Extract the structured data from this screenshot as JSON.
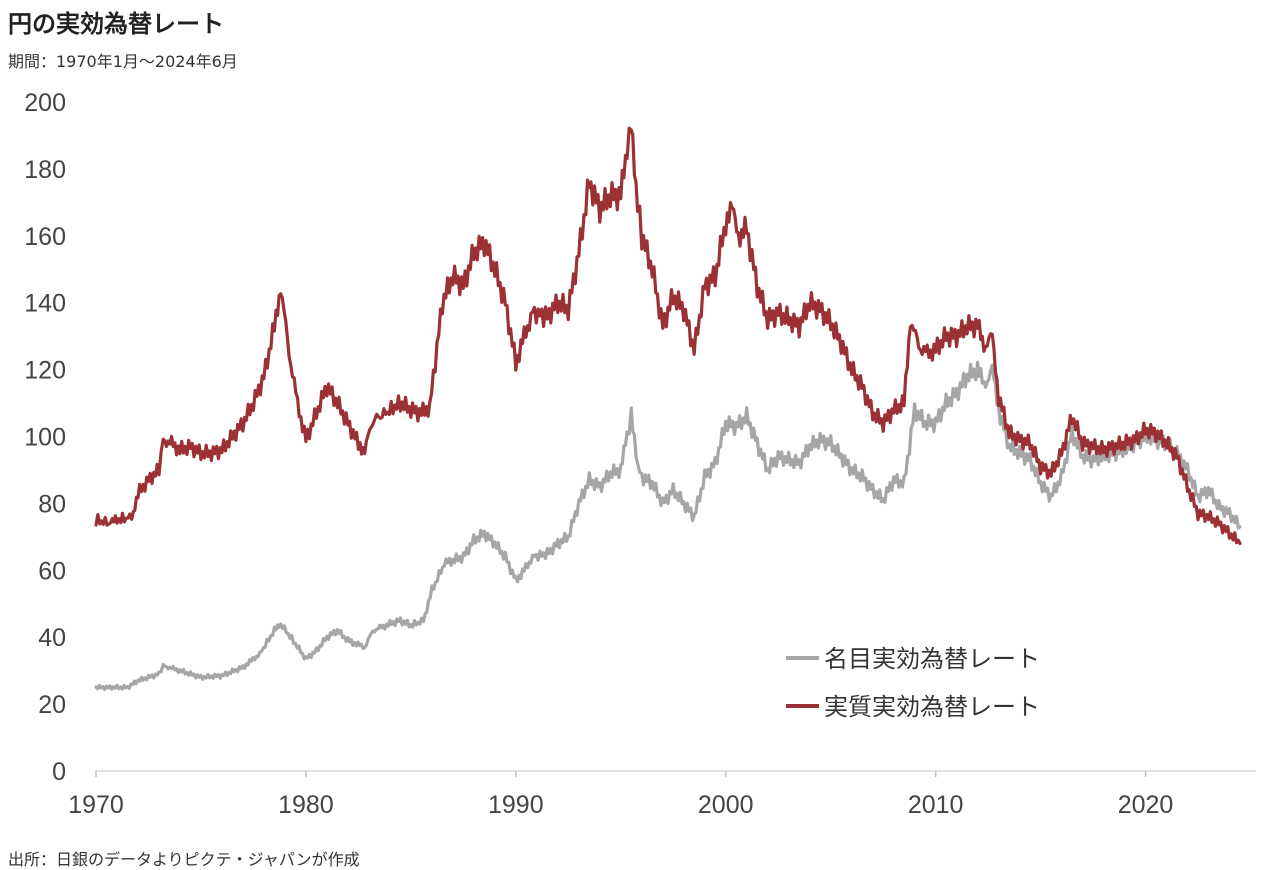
{
  "header": {
    "title": "円の実効為替レート",
    "subtitle": "期間：1970年1月～2024年6月"
  },
  "footer": {
    "source": "出所：日銀のデータよりピクテ・ジャパンが作成"
  },
  "chart_data": {
    "type": "line",
    "ylim": [
      0,
      200
    ],
    "xlim": [
      1970,
      2024.5
    ],
    "y_ticks": [
      0,
      20,
      40,
      60,
      80,
      100,
      120,
      140,
      160,
      180,
      200
    ],
    "x_ticks": [
      1970,
      1980,
      1990,
      2000,
      2010,
      2020
    ],
    "grid": false,
    "legend_position": "bottom-right",
    "series": [
      {
        "name": "名目実効為替レート",
        "color": "#a6a6a6",
        "points": [
          [
            1970.0,
            25
          ],
          [
            1971.5,
            25
          ],
          [
            1972.0,
            27
          ],
          [
            1973.0,
            29
          ],
          [
            1973.2,
            31.5
          ],
          [
            1974.0,
            30
          ],
          [
            1975.0,
            28
          ],
          [
            1976.0,
            28.5
          ],
          [
            1977.0,
            31
          ],
          [
            1977.8,
            35
          ],
          [
            1978.5,
            42
          ],
          [
            1978.8,
            44
          ],
          [
            1979.5,
            38
          ],
          [
            1980.0,
            33.5
          ],
          [
            1980.5,
            36
          ],
          [
            1981.0,
            40
          ],
          [
            1981.5,
            42
          ],
          [
            1982.0,
            39
          ],
          [
            1982.8,
            37
          ],
          [
            1983.2,
            42
          ],
          [
            1984.0,
            44
          ],
          [
            1984.5,
            45
          ],
          [
            1985.0,
            43.5
          ],
          [
            1985.6,
            45
          ],
          [
            1986.0,
            54
          ],
          [
            1986.6,
            62
          ],
          [
            1987.0,
            63
          ],
          [
            1987.5,
            64
          ],
          [
            1988.0,
            69
          ],
          [
            1988.5,
            71
          ],
          [
            1989.0,
            68
          ],
          [
            1989.5,
            64
          ],
          [
            1990.0,
            57
          ],
          [
            1990.4,
            60
          ],
          [
            1990.8,
            64
          ],
          [
            1991.5,
            65
          ],
          [
            1992.0,
            68
          ],
          [
            1992.5,
            70
          ],
          [
            1993.0,
            80
          ],
          [
            1993.5,
            87
          ],
          [
            1994.0,
            85
          ],
          [
            1994.5,
            89
          ],
          [
            1995.0,
            90
          ],
          [
            1995.3,
            100
          ],
          [
            1995.5,
            106
          ],
          [
            1995.8,
            92
          ],
          [
            1996.0,
            88
          ],
          [
            1996.5,
            86
          ],
          [
            1997.0,
            80
          ],
          [
            1997.5,
            84
          ],
          [
            1998.0,
            80
          ],
          [
            1998.5,
            76
          ],
          [
            1999.0,
            88
          ],
          [
            1999.5,
            92
          ],
          [
            2000.0,
            104
          ],
          [
            2000.5,
            103
          ],
          [
            2001.0,
            106
          ],
          [
            2001.5,
            98
          ],
          [
            2002.0,
            90
          ],
          [
            2002.5,
            94
          ],
          [
            2003.0,
            93
          ],
          [
            2003.5,
            92
          ],
          [
            2004.0,
            97
          ],
          [
            2004.5,
            99
          ],
          [
            2005.0,
            98
          ],
          [
            2005.5,
            94
          ],
          [
            2006.0,
            90
          ],
          [
            2006.5,
            88
          ],
          [
            2007.0,
            84
          ],
          [
            2007.5,
            81
          ],
          [
            2008.0,
            87
          ],
          [
            2008.5,
            86
          ],
          [
            2009.0,
            108
          ],
          [
            2009.5,
            104
          ],
          [
            2010.0,
            104
          ],
          [
            2010.5,
            110
          ],
          [
            2011.0,
            113
          ],
          [
            2011.5,
            118
          ],
          [
            2012.0,
            120
          ],
          [
            2012.3,
            115
          ],
          [
            2012.7,
            120
          ],
          [
            2013.0,
            108
          ],
          [
            2013.5,
            97
          ],
          [
            2014.0,
            95
          ],
          [
            2014.5,
            93
          ],
          [
            2015.0,
            86
          ],
          [
            2015.5,
            82
          ],
          [
            2016.0,
            88
          ],
          [
            2016.5,
            101
          ],
          [
            2017.0,
            94
          ],
          [
            2017.5,
            93
          ],
          [
            2018.0,
            94
          ],
          [
            2018.5,
            95
          ],
          [
            2019.0,
            96
          ],
          [
            2019.5,
            98
          ],
          [
            2020.0,
            100
          ],
          [
            2020.5,
            99
          ],
          [
            2021.0,
            98
          ],
          [
            2021.5,
            95
          ],
          [
            2022.0,
            90
          ],
          [
            2022.5,
            82
          ],
          [
            2023.0,
            84
          ],
          [
            2023.5,
            79
          ],
          [
            2024.0,
            77
          ],
          [
            2024.5,
            73
          ]
        ]
      },
      {
        "name": "実質実効為替レート",
        "color": "#9b3135",
        "points": [
          [
            1970.0,
            75
          ],
          [
            1970.7,
            74
          ],
          [
            1971.0,
            75
          ],
          [
            1971.7,
            76
          ],
          [
            1972.0,
            83
          ],
          [
            1972.5,
            87
          ],
          [
            1973.0,
            90
          ],
          [
            1973.2,
            99
          ],
          [
            1973.6,
            98
          ],
          [
            1974.0,
            96
          ],
          [
            1974.5,
            97
          ],
          [
            1975.0,
            95
          ],
          [
            1975.5,
            95
          ],
          [
            1976.0,
            96
          ],
          [
            1976.5,
            100
          ],
          [
            1977.0,
            104
          ],
          [
            1977.5,
            110
          ],
          [
            1978.0,
            118
          ],
          [
            1978.5,
            133
          ],
          [
            1978.8,
            145
          ],
          [
            1979.2,
            125
          ],
          [
            1979.6,
            110
          ],
          [
            1980.0,
            99
          ],
          [
            1980.5,
            107
          ],
          [
            1981.0,
            115
          ],
          [
            1981.5,
            110
          ],
          [
            1982.0,
            104
          ],
          [
            1982.5,
            98
          ],
          [
            1982.8,
            96
          ],
          [
            1983.2,
            105
          ],
          [
            1983.8,
            107
          ],
          [
            1984.5,
            110
          ],
          [
            1985.0,
            108
          ],
          [
            1985.5,
            107
          ],
          [
            1985.9,
            109
          ],
          [
            1986.5,
            140
          ],
          [
            1987.0,
            148
          ],
          [
            1987.5,
            145
          ],
          [
            1988.0,
            155
          ],
          [
            1988.5,
            158
          ],
          [
            1989.0,
            150
          ],
          [
            1989.5,
            140
          ],
          [
            1990.0,
            122
          ],
          [
            1990.4,
            130
          ],
          [
            1990.8,
            137
          ],
          [
            1991.5,
            136
          ],
          [
            1992.0,
            140
          ],
          [
            1992.5,
            138
          ],
          [
            1993.0,
            155
          ],
          [
            1993.5,
            176
          ],
          [
            1994.0,
            168
          ],
          [
            1994.5,
            172
          ],
          [
            1995.0,
            172
          ],
          [
            1995.3,
            185
          ],
          [
            1995.5,
            194
          ],
          [
            1995.8,
            170
          ],
          [
            1996.0,
            160
          ],
          [
            1996.5,
            150
          ],
          [
            1997.0,
            133
          ],
          [
            1997.5,
            142
          ],
          [
            1998.0,
            138
          ],
          [
            1998.5,
            126
          ],
          [
            1999.0,
            145
          ],
          [
            1999.5,
            148
          ],
          [
            2000.0,
            164
          ],
          [
            2000.3,
            168
          ],
          [
            2000.6,
            160
          ],
          [
            2001.0,
            162
          ],
          [
            2001.5,
            145
          ],
          [
            2002.0,
            135
          ],
          [
            2002.5,
            137
          ],
          [
            2003.0,
            135
          ],
          [
            2003.5,
            133
          ],
          [
            2004.0,
            140
          ],
          [
            2004.5,
            138
          ],
          [
            2005.0,
            134
          ],
          [
            2005.5,
            128
          ],
          [
            2006.0,
            120
          ],
          [
            2006.5,
            115
          ],
          [
            2007.0,
            107
          ],
          [
            2007.5,
            104
          ],
          [
            2008.0,
            108
          ],
          [
            2008.5,
            110
          ],
          [
            2008.8,
            135
          ],
          [
            2009.2,
            127
          ],
          [
            2009.6,
            125
          ],
          [
            2010.0,
            126
          ],
          [
            2010.5,
            130
          ],
          [
            2011.0,
            130
          ],
          [
            2011.5,
            133
          ],
          [
            2012.0,
            133
          ],
          [
            2012.3,
            127
          ],
          [
            2012.7,
            130
          ],
          [
            2013.0,
            112
          ],
          [
            2013.5,
            101
          ],
          [
            2014.0,
            99
          ],
          [
            2014.5,
            98
          ],
          [
            2015.0,
            91
          ],
          [
            2015.5,
            89
          ],
          [
            2016.0,
            95
          ],
          [
            2016.5,
            106
          ],
          [
            2017.0,
            98
          ],
          [
            2017.5,
            97
          ],
          [
            2018.0,
            96
          ],
          [
            2018.5,
            97
          ],
          [
            2019.0,
            98
          ],
          [
            2019.5,
            99
          ],
          [
            2020.0,
            102
          ],
          [
            2020.5,
            101
          ],
          [
            2021.0,
            98
          ],
          [
            2021.5,
            94
          ],
          [
            2022.0,
            85
          ],
          [
            2022.5,
            77
          ],
          [
            2023.0,
            76
          ],
          [
            2023.5,
            74
          ],
          [
            2024.0,
            71
          ],
          [
            2024.5,
            68
          ]
        ]
      }
    ]
  }
}
